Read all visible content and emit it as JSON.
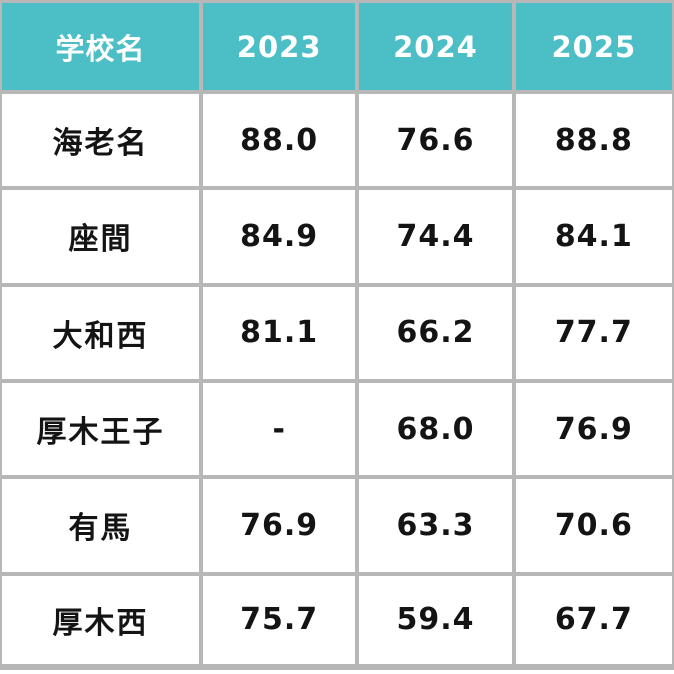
{
  "chart_data": {
    "type": "table",
    "columns": [
      "学校名",
      "2023",
      "2024",
      "2025"
    ],
    "rows": [
      {
        "name": "海老名",
        "values": [
          "88.0",
          "76.6",
          "88.8"
        ]
      },
      {
        "name": "座間",
        "values": [
          "84.9",
          "74.4",
          "84.1"
        ]
      },
      {
        "name": "大和西",
        "values": [
          "81.1",
          "66.2",
          "77.7"
        ]
      },
      {
        "name": "厚木王子",
        "values": [
          "-",
          "68.0",
          "76.9"
        ]
      },
      {
        "name": "有馬",
        "values": [
          "76.9",
          "63.3",
          "70.6"
        ]
      },
      {
        "name": "厚木西",
        "values": [
          "75.7",
          "59.4",
          "67.7"
        ]
      }
    ]
  },
  "colors": {
    "header_bg": "#4BBEC6",
    "header_text": "#FFFFFF",
    "body_text": "#141414",
    "grid_border": "#B7B7B7"
  }
}
